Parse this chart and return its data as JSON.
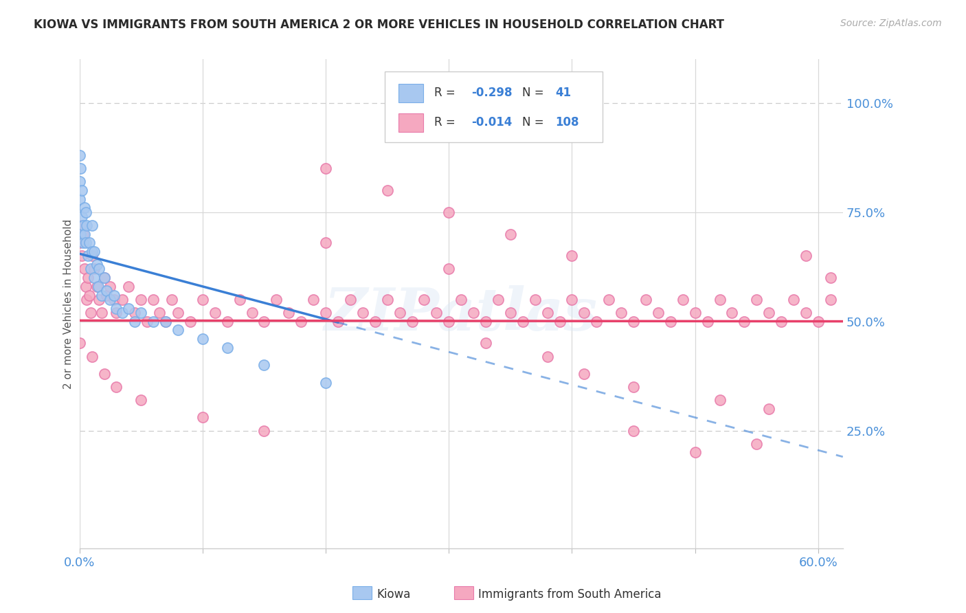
{
  "title": "KIOWA VS IMMIGRANTS FROM SOUTH AMERICA 2 OR MORE VEHICLES IN HOUSEHOLD CORRELATION CHART",
  "source_text": "Source: ZipAtlas.com",
  "ylabel": "2 or more Vehicles in Household",
  "xlim": [
    0.0,
    0.62
  ],
  "ylim": [
    -0.02,
    1.1
  ],
  "R_kiowa": -0.298,
  "N_kiowa": 41,
  "R_immigrants": -0.014,
  "N_immigrants": 108,
  "kiowa_color": "#a8c8f0",
  "immigrants_color": "#f5a8c0",
  "kiowa_edge": "#7aaee8",
  "immigrants_edge": "#e87aaa",
  "trend_kiowa_solid_color": "#3a7fd5",
  "trend_immigrants_color": "#e8406a",
  "grid_color_solid": "#d8d8d8",
  "grid_color_dashed": "#cccccc",
  "background_color": "#ffffff",
  "title_color": "#2a2a2a",
  "axis_label_color": "#555555",
  "tick_color": "#4a90d9",
  "watermark_color": "#dce8f5",
  "legend_border_color": "#cccccc",
  "kiowa_x": [
    0.0,
    0.0,
    0.0,
    0.001,
    0.001,
    0.002,
    0.002,
    0.003,
    0.003,
    0.004,
    0.004,
    0.005,
    0.005,
    0.006,
    0.007,
    0.008,
    0.009,
    0.01,
    0.01,
    0.012,
    0.012,
    0.014,
    0.015,
    0.016,
    0.018,
    0.02,
    0.022,
    0.025,
    0.028,
    0.03,
    0.035,
    0.04,
    0.045,
    0.05,
    0.06,
    0.07,
    0.08,
    0.1,
    0.12,
    0.15,
    0.2
  ],
  "kiowa_y": [
    0.88,
    0.82,
    0.78,
    0.7,
    0.85,
    0.8,
    0.74,
    0.72,
    0.68,
    0.76,
    0.7,
    0.75,
    0.68,
    0.72,
    0.65,
    0.68,
    0.62,
    0.72,
    0.66,
    0.66,
    0.6,
    0.63,
    0.58,
    0.62,
    0.56,
    0.6,
    0.57,
    0.55,
    0.56,
    0.53,
    0.52,
    0.53,
    0.5,
    0.52,
    0.5,
    0.5,
    0.48,
    0.46,
    0.44,
    0.4,
    0.36
  ],
  "imm_x": [
    0.0,
    0.001,
    0.002,
    0.003,
    0.004,
    0.005,
    0.006,
    0.007,
    0.008,
    0.009,
    0.01,
    0.012,
    0.014,
    0.016,
    0.018,
    0.02,
    0.022,
    0.025,
    0.028,
    0.03,
    0.035,
    0.04,
    0.045,
    0.05,
    0.055,
    0.06,
    0.065,
    0.07,
    0.075,
    0.08,
    0.09,
    0.1,
    0.11,
    0.12,
    0.13,
    0.14,
    0.15,
    0.16,
    0.17,
    0.18,
    0.19,
    0.2,
    0.21,
    0.22,
    0.23,
    0.24,
    0.25,
    0.26,
    0.27,
    0.28,
    0.29,
    0.3,
    0.31,
    0.32,
    0.33,
    0.34,
    0.35,
    0.36,
    0.37,
    0.38,
    0.39,
    0.4,
    0.41,
    0.42,
    0.43,
    0.44,
    0.45,
    0.46,
    0.47,
    0.48,
    0.49,
    0.5,
    0.51,
    0.52,
    0.53,
    0.54,
    0.55,
    0.56,
    0.57,
    0.58,
    0.59,
    0.6,
    0.61,
    0.0,
    0.01,
    0.02,
    0.03,
    0.05,
    0.1,
    0.15,
    0.2,
    0.25,
    0.3,
    0.35,
    0.4,
    0.45,
    0.5,
    0.55,
    0.2,
    0.3,
    0.33,
    0.38,
    0.41,
    0.45,
    0.52,
    0.56,
    0.59,
    0.61
  ],
  "imm_y": [
    0.68,
    0.72,
    0.65,
    0.7,
    0.62,
    0.58,
    0.55,
    0.6,
    0.56,
    0.52,
    0.65,
    0.62,
    0.58,
    0.55,
    0.52,
    0.6,
    0.56,
    0.58,
    0.55,
    0.52,
    0.55,
    0.58,
    0.52,
    0.55,
    0.5,
    0.55,
    0.52,
    0.5,
    0.55,
    0.52,
    0.5,
    0.55,
    0.52,
    0.5,
    0.55,
    0.52,
    0.5,
    0.55,
    0.52,
    0.5,
    0.55,
    0.52,
    0.5,
    0.55,
    0.52,
    0.5,
    0.55,
    0.52,
    0.5,
    0.55,
    0.52,
    0.5,
    0.55,
    0.52,
    0.5,
    0.55,
    0.52,
    0.5,
    0.55,
    0.52,
    0.5,
    0.55,
    0.52,
    0.5,
    0.55,
    0.52,
    0.5,
    0.55,
    0.52,
    0.5,
    0.55,
    0.52,
    0.5,
    0.55,
    0.52,
    0.5,
    0.55,
    0.52,
    0.5,
    0.55,
    0.52,
    0.5,
    0.55,
    0.45,
    0.42,
    0.38,
    0.35,
    0.32,
    0.28,
    0.25,
    0.85,
    0.8,
    0.75,
    0.7,
    0.65,
    0.25,
    0.2,
    0.22,
    0.68,
    0.62,
    0.45,
    0.42,
    0.38,
    0.35,
    0.32,
    0.3,
    0.65,
    0.6
  ]
}
